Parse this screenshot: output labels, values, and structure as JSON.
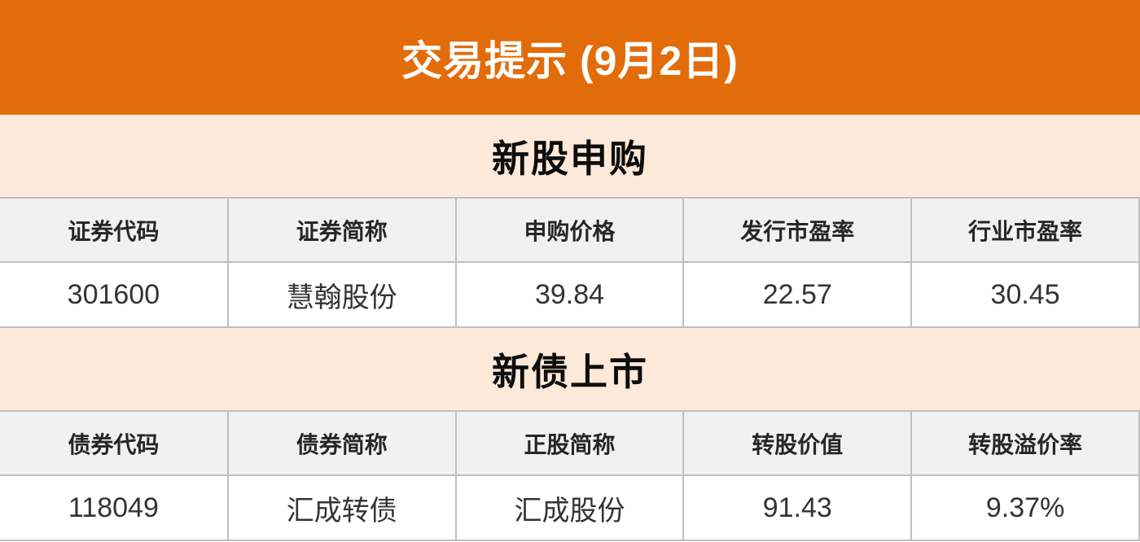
{
  "title": {
    "text": "交易提示 (9月2日)"
  },
  "sections": [
    {
      "heading": "新股申购",
      "columns": [
        "证券代码",
        "证券简称",
        "申购价格",
        "发行市盈率",
        "行业市盈率"
      ],
      "rows": [
        [
          "301600",
          "慧翰股份",
          "39.84",
          "22.57",
          "30.45"
        ]
      ]
    },
    {
      "heading": "新债上市",
      "columns": [
        "债券代码",
        "债券简称",
        "正股简称",
        "转股价值",
        "转股溢价率"
      ],
      "rows": [
        [
          "118049",
          "汇成转债",
          "汇成股份",
          "91.43",
          "9.37%"
        ]
      ]
    }
  ],
  "colors": {
    "banner_bg": "#e36c0a",
    "banner_text": "#ffffff",
    "section_band_bg": "#fde9d9",
    "table_header_bg": "#f1f1f1",
    "grid_border": "#bfbfbf",
    "header_text": "#262626",
    "cell_text": "#333333"
  },
  "chart_data": [
    {
      "type": "table",
      "title": "新股申购",
      "columns": [
        "证券代码",
        "证券简称",
        "申购价格",
        "发行市盈率",
        "行业市盈率"
      ],
      "rows": [
        [
          "301600",
          "慧翰股份",
          39.84,
          22.57,
          30.45
        ]
      ]
    },
    {
      "type": "table",
      "title": "新债上市",
      "columns": [
        "债券代码",
        "债券简称",
        "正股简称",
        "转股价值",
        "转股溢价率"
      ],
      "rows": [
        [
          "118049",
          "汇成转债",
          "汇成股份",
          91.43,
          "9.37%"
        ]
      ]
    }
  ]
}
